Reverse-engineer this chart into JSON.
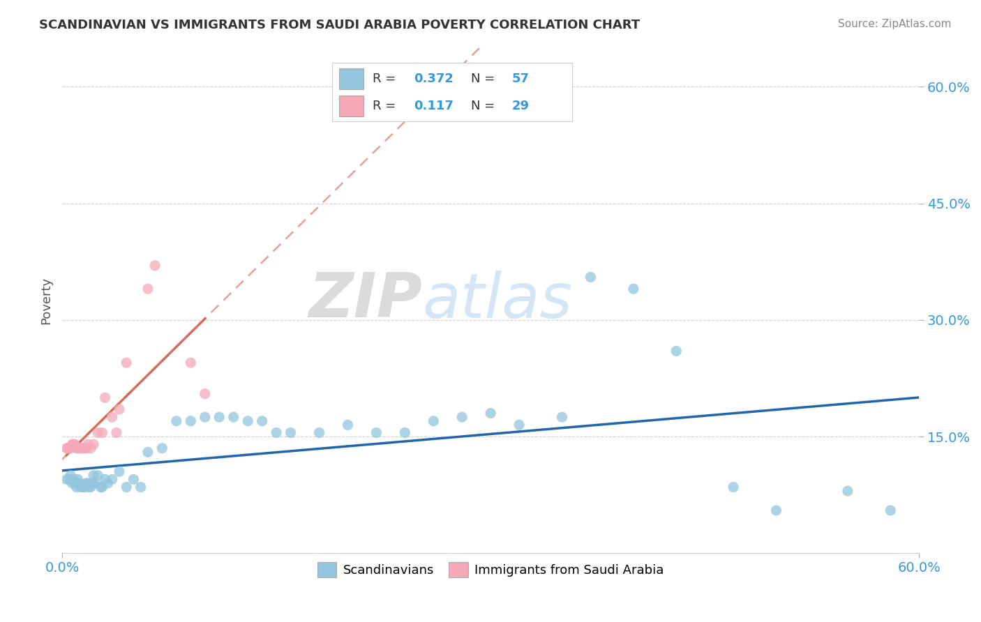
{
  "title": "SCANDINAVIAN VS IMMIGRANTS FROM SAUDI ARABIA POVERTY CORRELATION CHART",
  "source": "Source: ZipAtlas.com",
  "ylabel": "Poverty",
  "xlim": [
    0.0,
    0.6
  ],
  "ylim": [
    0.0,
    0.65
  ],
  "ytick_vals": [
    0.15,
    0.3,
    0.45,
    0.6
  ],
  "ytick_labels": [
    "15.0%",
    "30.0%",
    "45.0%",
    "60.0%"
  ],
  "xtick_vals": [
    0.0,
    0.6
  ],
  "xtick_labels": [
    "0.0%",
    "60.0%"
  ],
  "legend_labels": [
    "Scandinavians",
    "Immigrants from Saudi Arabia"
  ],
  "R_blue": 0.372,
  "N_blue": 57,
  "R_pink": 0.117,
  "N_pink": 29,
  "color_blue": "#92c5de",
  "color_pink": "#f4a8b8",
  "trendline_blue": "#2166ac",
  "trendline_pink": "#d6604d",
  "watermark_zip": "ZIP",
  "watermark_atlas": "atlas",
  "background": "#ffffff",
  "grid_color": "#d0d0d0",
  "blue_x": [
    0.003,
    0.005,
    0.006,
    0.007,
    0.008,
    0.009,
    0.01,
    0.011,
    0.012,
    0.013,
    0.014,
    0.015,
    0.016,
    0.017,
    0.018,
    0.019,
    0.02,
    0.021,
    0.022,
    0.023,
    0.025,
    0.027,
    0.028,
    0.03,
    0.032,
    0.035,
    0.04,
    0.045,
    0.05,
    0.055,
    0.06,
    0.07,
    0.08,
    0.09,
    0.1,
    0.11,
    0.12,
    0.13,
    0.14,
    0.15,
    0.16,
    0.18,
    0.2,
    0.22,
    0.24,
    0.26,
    0.28,
    0.3,
    0.32,
    0.35,
    0.37,
    0.4,
    0.43,
    0.47,
    0.5,
    0.55,
    0.58
  ],
  "blue_y": [
    0.095,
    0.095,
    0.1,
    0.09,
    0.095,
    0.09,
    0.085,
    0.095,
    0.09,
    0.085,
    0.085,
    0.085,
    0.085,
    0.09,
    0.09,
    0.085,
    0.085,
    0.09,
    0.1,
    0.09,
    0.1,
    0.085,
    0.085,
    0.095,
    0.09,
    0.095,
    0.105,
    0.085,
    0.095,
    0.085,
    0.13,
    0.135,
    0.17,
    0.17,
    0.175,
    0.175,
    0.175,
    0.17,
    0.17,
    0.155,
    0.155,
    0.155,
    0.165,
    0.155,
    0.155,
    0.17,
    0.175,
    0.18,
    0.165,
    0.175,
    0.355,
    0.34,
    0.26,
    0.085,
    0.055,
    0.08,
    0.055
  ],
  "pink_x": [
    0.003,
    0.004,
    0.005,
    0.006,
    0.007,
    0.008,
    0.009,
    0.01,
    0.011,
    0.012,
    0.013,
    0.014,
    0.015,
    0.016,
    0.017,
    0.018,
    0.02,
    0.022,
    0.025,
    0.028,
    0.03,
    0.035,
    0.038,
    0.04,
    0.045,
    0.06,
    0.065,
    0.09,
    0.1
  ],
  "pink_y": [
    0.135,
    0.135,
    0.135,
    0.135,
    0.14,
    0.14,
    0.14,
    0.135,
    0.135,
    0.135,
    0.135,
    0.135,
    0.135,
    0.135,
    0.135,
    0.14,
    0.135,
    0.14,
    0.155,
    0.155,
    0.2,
    0.175,
    0.155,
    0.185,
    0.245,
    0.34,
    0.37,
    0.245,
    0.205
  ]
}
